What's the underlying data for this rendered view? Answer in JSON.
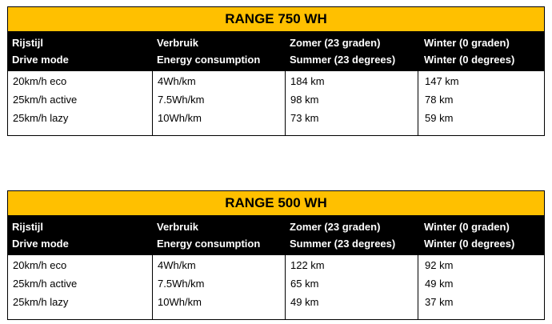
{
  "tables": [
    {
      "title": "RANGE 750 WH",
      "header": [
        [
          "Rijstijl",
          "Drive mode"
        ],
        [
          "Verbruik",
          "Energy consumption"
        ],
        [
          "Zomer (23 graden)",
          "Summer (23 degrees)"
        ],
        [
          "Winter (0 graden)",
          "Winter (0 degrees)"
        ]
      ],
      "rows": [
        [
          "20km/h eco",
          "4Wh/km",
          "184 km",
          "147 km"
        ],
        [
          "25km/h active",
          "7.5Wh/km",
          "98 km",
          "78 km"
        ],
        [
          "25km/h lazy",
          "10Wh/km",
          "73 km",
          "59 km"
        ]
      ]
    },
    {
      "title": "RANGE 500 WH",
      "header": [
        [
          "Rijstijl",
          "Drive mode"
        ],
        [
          "Verbruik",
          "Energy consumption"
        ],
        [
          "Zomer (23 graden)",
          "Summer (23 degrees)"
        ],
        [
          "Winter (0 graden)",
          "Winter (0 degrees)"
        ]
      ],
      "rows": [
        [
          "20km/h eco",
          "4Wh/km",
          "122 km",
          "92 km"
        ],
        [
          "25km/h active",
          "7.5Wh/km",
          "65 km",
          "49 km"
        ],
        [
          "25km/h lazy",
          "10Wh/km",
          "49 km",
          "37 km"
        ]
      ]
    }
  ]
}
